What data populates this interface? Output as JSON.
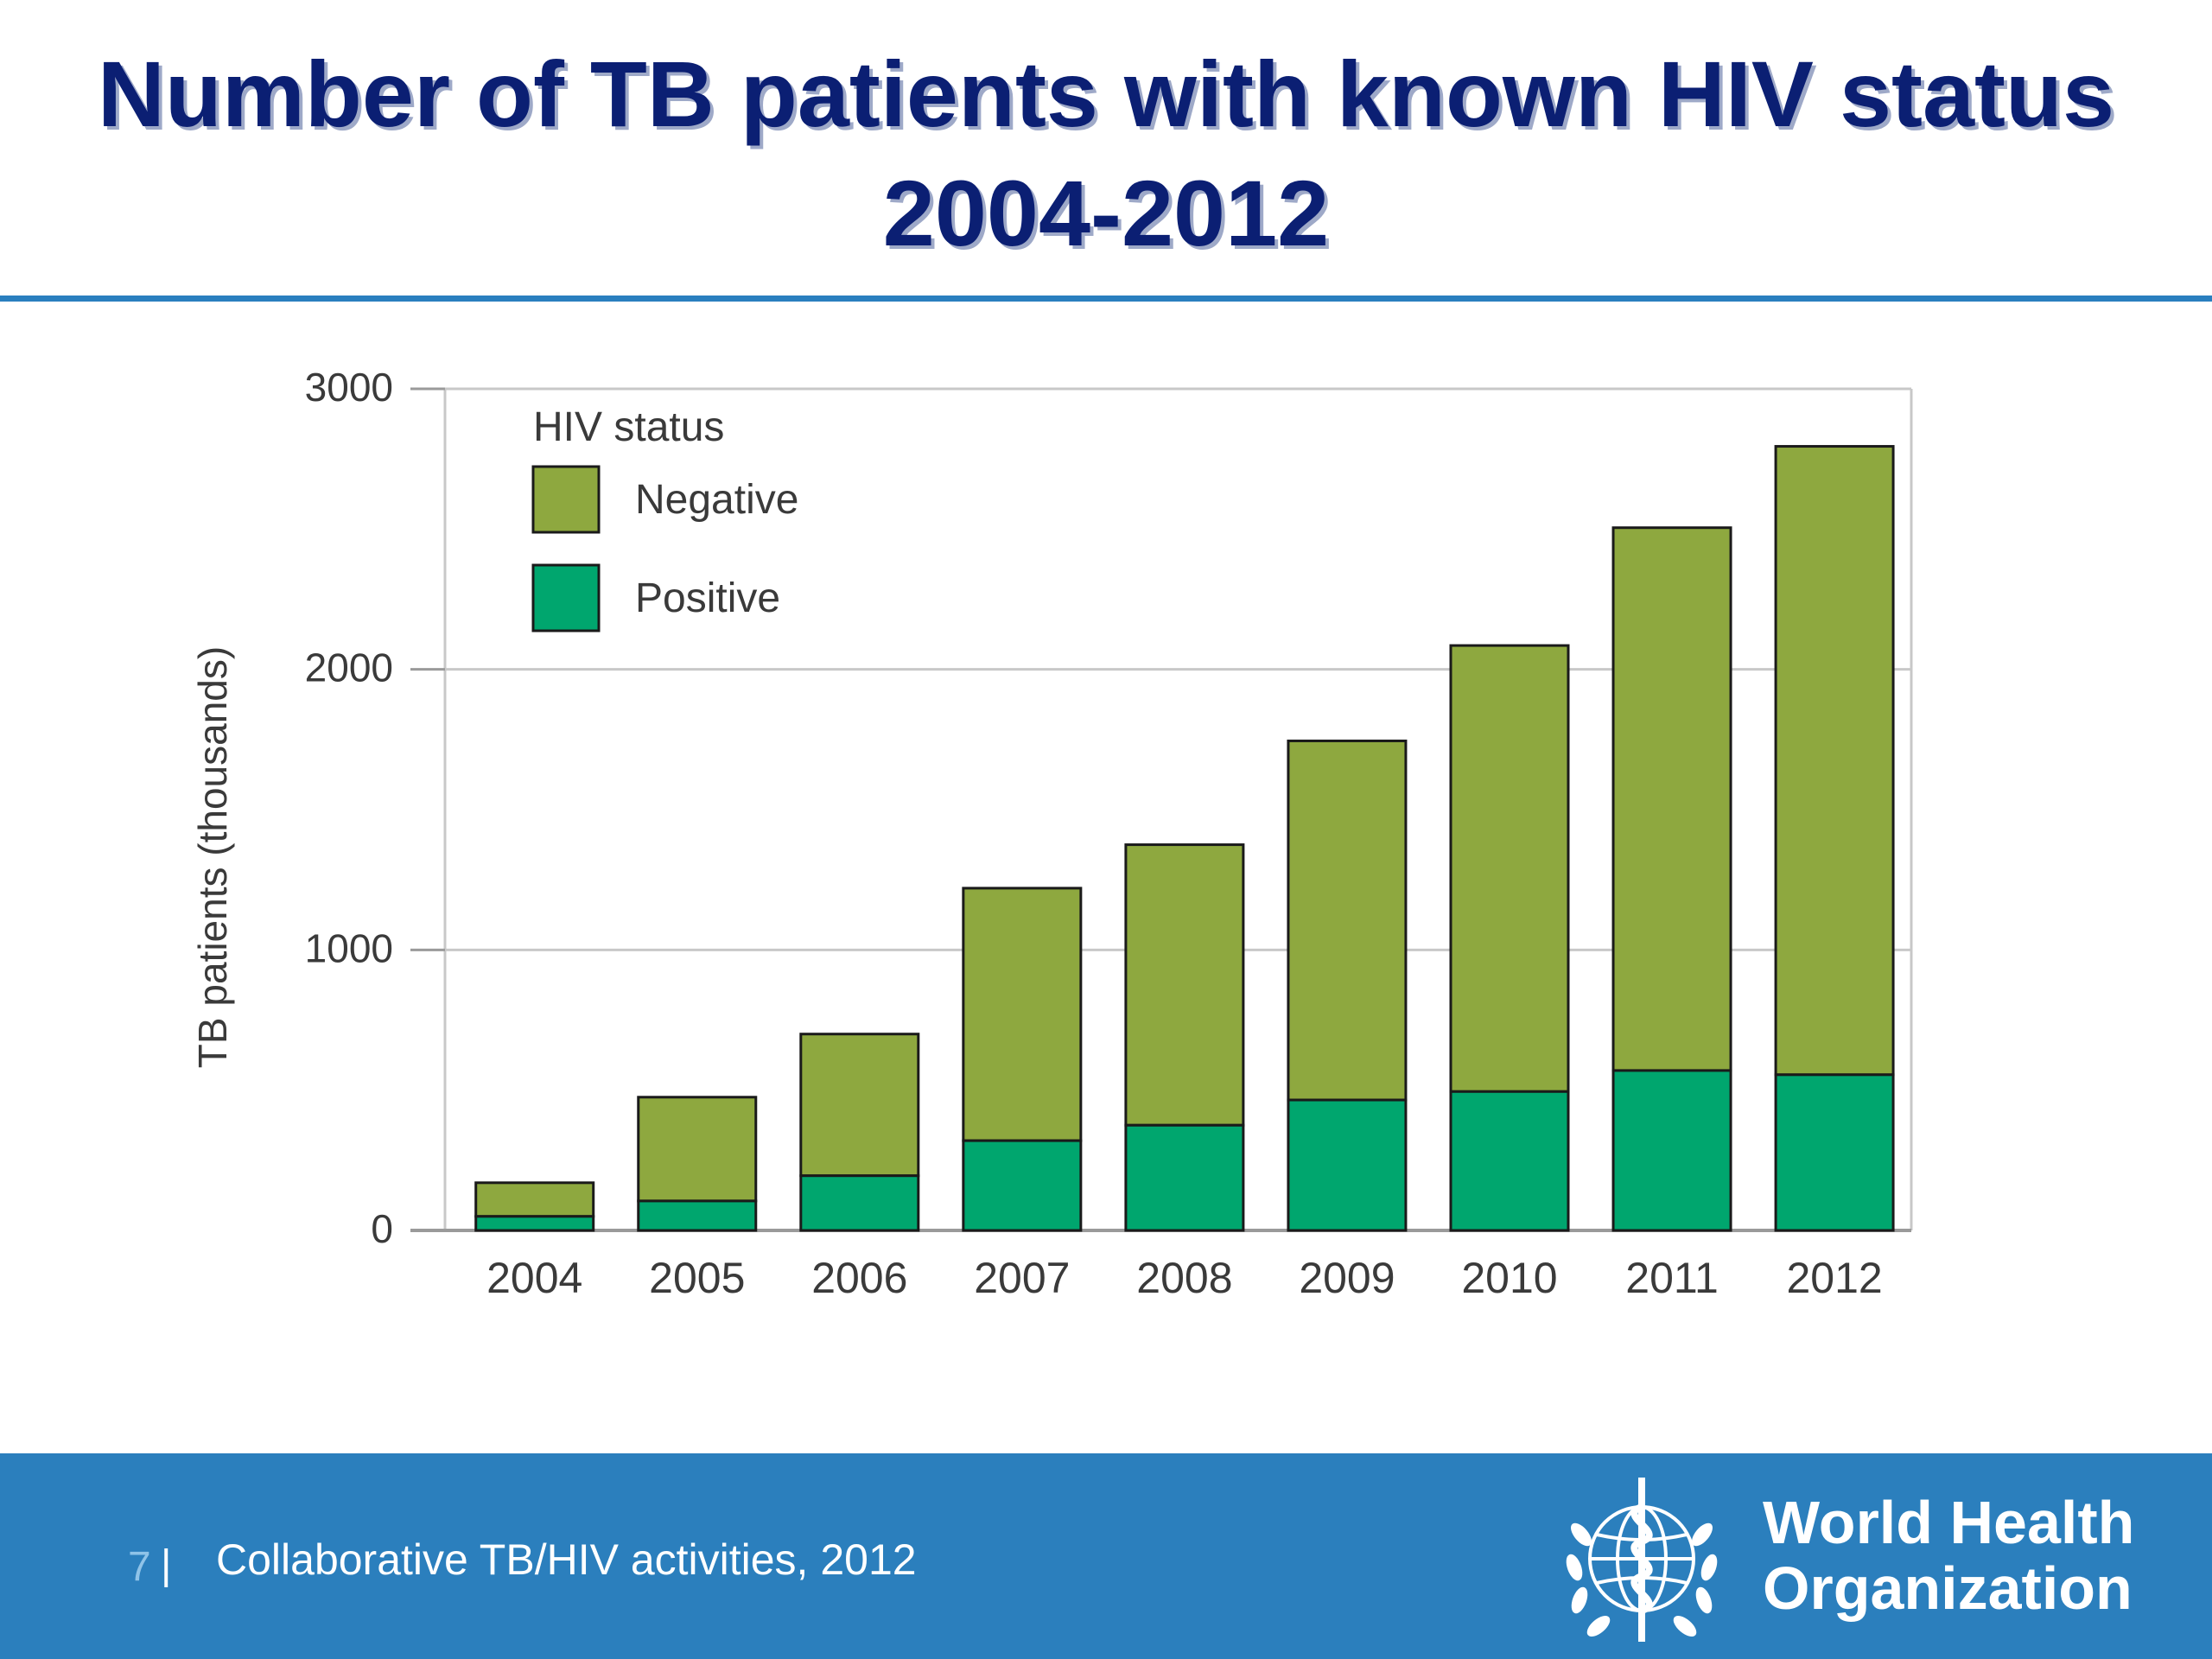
{
  "slide": {
    "title_line1": "Number of TB patients with known HIV status",
    "title_line2": "2004-2012"
  },
  "chart_data": {
    "type": "bar",
    "stacked": true,
    "categories": [
      "2004",
      "2005",
      "2006",
      "2007",
      "2008",
      "2009",
      "2010",
      "2011",
      "2012"
    ],
    "series": [
      {
        "name": "Positive",
        "color": "#00a66e",
        "values": [
          50,
          105,
          195,
          320,
          375,
          465,
          495,
          570,
          555
        ]
      },
      {
        "name": "Negative",
        "color": "#8ea83f",
        "values": [
          120,
          370,
          505,
          900,
          1000,
          1280,
          1590,
          1935,
          2240
        ]
      }
    ],
    "ylabel": "TB patients (thousands)",
    "xlabel": "",
    "ylim": [
      0,
      3000
    ],
    "yticks": [
      0,
      1000,
      2000,
      3000
    ],
    "grid": true,
    "legend": {
      "title": "HIV status",
      "placement": "top-left",
      "order": [
        "Negative",
        "Positive"
      ]
    }
  },
  "footer": {
    "page_number": "7",
    "separator": "|",
    "source": "Collaborative TB/HIV activities, 2012",
    "logo_line1": "World Health",
    "logo_line2": "Organization"
  },
  "colors": {
    "title": "#0b1f73",
    "rule": "#2a7fbf",
    "footer_bg": "#2b7fbd"
  }
}
